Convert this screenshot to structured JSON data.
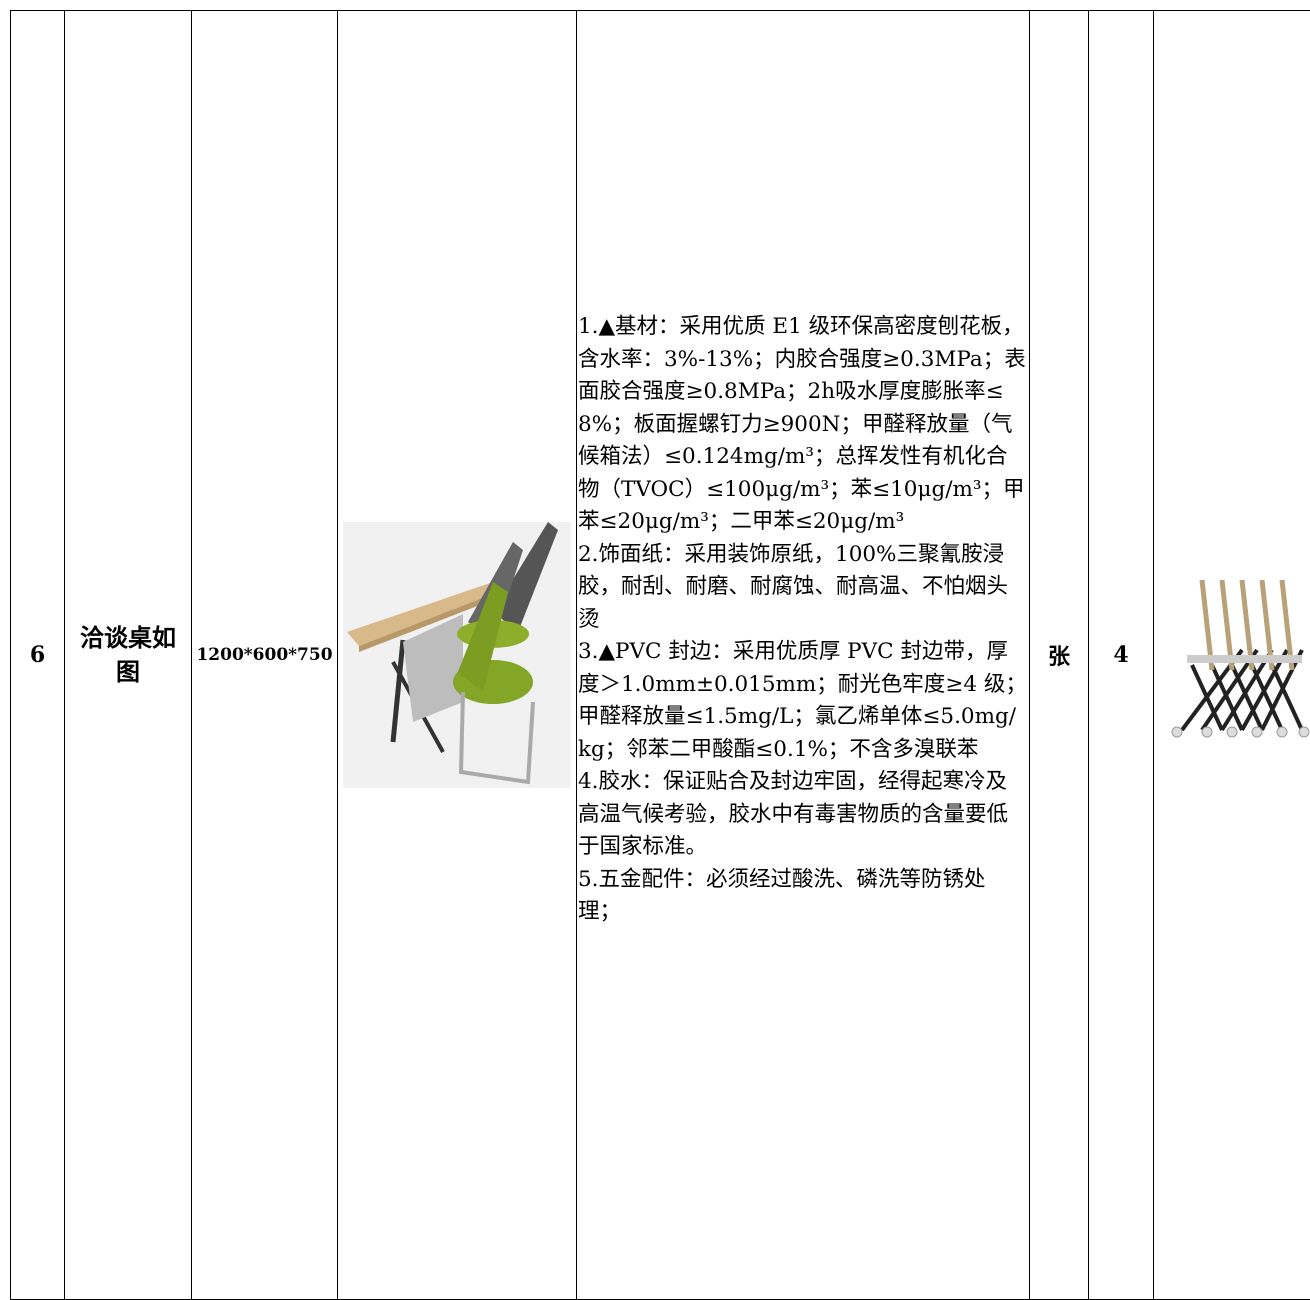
{
  "table": {
    "rows": [
      {
        "index": "6",
        "name": "洽谈桌如图",
        "size": "1200*600*750",
        "spec": [
          "1.▲基材：采用优质 E1 级环保高密度刨花板，含水率：3%-13%；内胶合强度≥0.3MPa；表面胶合强度≥0.8MPa；2h吸水厚度膨胀率≤8%；板面握螺钉力≥900N；甲醛释放量（气候箱法）≤0.124mg/m³；总挥发性有机化合物（TVOC）≤100μg/m³；苯≤10μg/m³；甲苯≤20μg/m³；二甲苯≤20μg/m³",
          "2.饰面纸：采用装饰原纸，100%三聚氰胺浸胶，耐刮、耐磨、耐腐蚀、耐高温、不怕烟头烫",
          "3.▲PVC 封边：采用优质厚 PVC 封边带，厚度＞1.0mm±0.015mm；耐光色牢度≥4 级；甲醛释放量≤1.5mg/L；氯乙烯单体≤5.0mg/kg；邻苯二甲酸酯≤0.1%；不含多溴联苯",
          "4.胶水：保证贴合及封边牢固，经得起寒冷及高温气候考验，胶水中有毒害物质的含量要低于国家标准。",
          "5.五金配件：必须经过酸洗、磷洗等防锈处理；"
        ],
        "unit": "张",
        "quantity": 4
      }
    ]
  }
}
